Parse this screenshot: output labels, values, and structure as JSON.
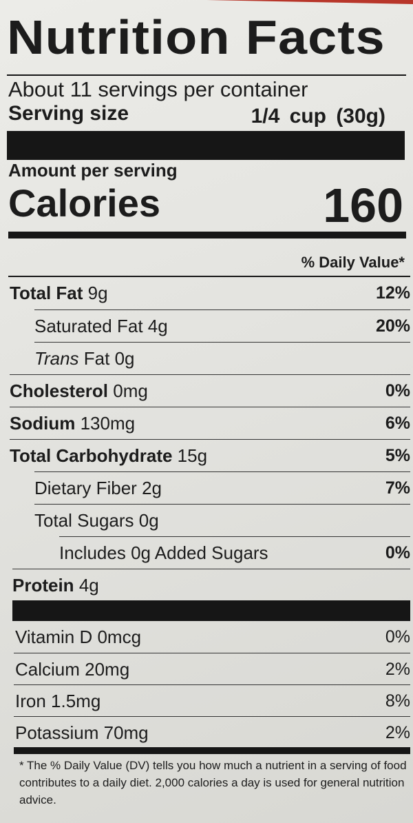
{
  "title": "Nutrition Facts",
  "servings": "About 11 servings per container",
  "serving_size": {
    "label": "Serving size",
    "value": "1/4 cup (30g)"
  },
  "amount_per_serving": "Amount per serving",
  "calories": {
    "label": "Calories",
    "value": "160"
  },
  "dv_header": "% Daily Value*",
  "nutrients": [
    {
      "name": "Total Fat",
      "amount": "9g",
      "dv": "12%"
    },
    {
      "name": "Saturated Fat",
      "amount": "4g",
      "dv": "20%"
    },
    {
      "name_italic": "Trans",
      "name": "Fat",
      "amount": "0g"
    },
    {
      "name": "Cholesterol",
      "amount": "0mg",
      "dv": "0%"
    },
    {
      "name": "Sodium",
      "amount": "130mg",
      "dv": "6%"
    },
    {
      "name": "Total Carbohydrate",
      "amount": "15g",
      "dv": "5%"
    },
    {
      "name": "Dietary Fiber",
      "amount": "2g",
      "dv": "7%"
    },
    {
      "name": "Total Sugars",
      "amount": "0g"
    },
    {
      "name": "Includes 0g Added Sugars",
      "dv": "0%"
    },
    {
      "name": "Protein",
      "amount": "4g"
    }
  ],
  "vitamins": [
    {
      "name": "Vitamin D 0mcg",
      "dv": "0%"
    },
    {
      "name": "Calcium 20mg",
      "dv": "2%"
    },
    {
      "name": "Iron 1.5mg",
      "dv": "8%"
    },
    {
      "name": "Potassium 70mg",
      "dv": "2%"
    }
  ],
  "footnote": "* The % Daily Value (DV) tells you how much a nutrient in a serving of food contributes to a daily diet. 2,000 calories a day is used for general nutrition advice."
}
